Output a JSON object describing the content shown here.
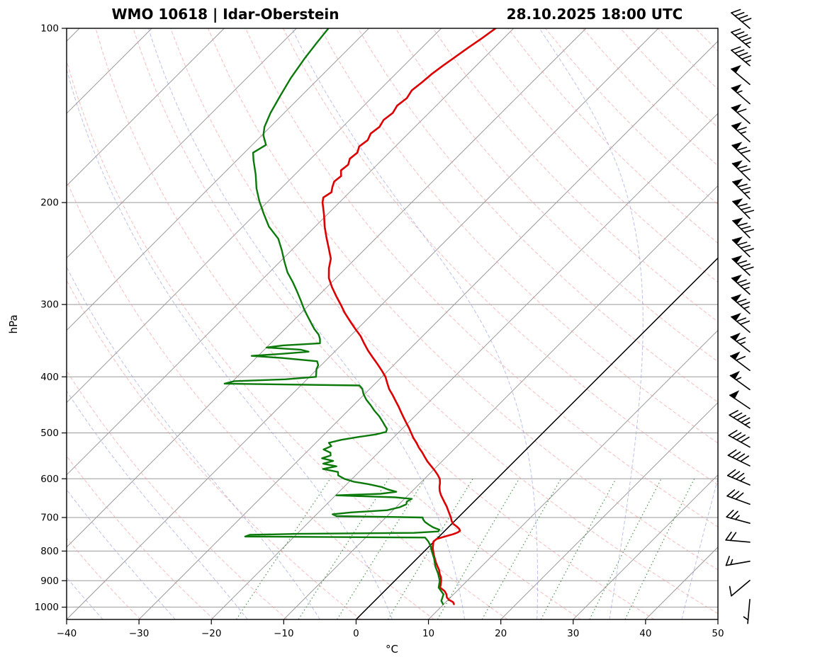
{
  "header": {
    "station_title": "WMO 10618 | Idar-Oberstein",
    "datetime_title": "28.10.2025 18:00 UTC"
  },
  "axes": {
    "pressure_label": "hPa",
    "temperature_label": "°C",
    "pressure_ticks": [
      100,
      200,
      300,
      400,
      500,
      600,
      700,
      800,
      900,
      1000
    ],
    "temperature_ticks": [
      -40,
      -30,
      -20,
      -10,
      0,
      10,
      20,
      30,
      40,
      50
    ],
    "pressure_top": 100,
    "pressure_bottom": 1050,
    "temp_min": -40,
    "temp_max": 50
  },
  "colors": {
    "temperature": "#dd0000",
    "dewpoint": "#0b7a0b",
    "dry_adiabat": "#ef9a9a",
    "moist_adiabat": "#959fdc",
    "mixing_ratio": "#2e7d32",
    "isoline": "#9a9a9a",
    "zero_isotherm": "#000000",
    "frame": "#000000",
    "wind_barb": "#000000"
  },
  "chart_data": {
    "type": "skewt",
    "title": "WMO 10618 | Idar-Oberstein",
    "subtitle": "28.10.2025 18:00 UTC",
    "xlabel": "°C",
    "ylabel": "hPa",
    "x_range_c": [
      -40,
      50
    ],
    "p_range_hpa": [
      100,
      1050
    ],
    "series": [
      {
        "name": "temperature",
        "unit": "°C",
        "color_key": "temperature",
        "points": [
          [
            988,
            11.4
          ],
          [
            980,
            11.0
          ],
          [
            972,
            10.2
          ],
          [
            962,
            9.5
          ],
          [
            950,
            9.0
          ],
          [
            938,
            8.3
          ],
          [
            925,
            7.2
          ],
          [
            912,
            6.8
          ],
          [
            900,
            6.4
          ],
          [
            888,
            5.9
          ],
          [
            875,
            5.2
          ],
          [
            862,
            4.6
          ],
          [
            850,
            3.9
          ],
          [
            838,
            3.2
          ],
          [
            825,
            2.5
          ],
          [
            812,
            1.8
          ],
          [
            800,
            1.2
          ],
          [
            790,
            0.7
          ],
          [
            780,
            0.3
          ],
          [
            770,
            -0.1
          ],
          [
            762,
            0.0
          ],
          [
            755,
            0.8
          ],
          [
            748,
            1.6
          ],
          [
            743,
            2.0
          ],
          [
            738,
            2.1
          ],
          [
            732,
            1.7
          ],
          [
            725,
            1.0
          ],
          [
            718,
            0.2
          ],
          [
            710,
            -0.4
          ],
          [
            700,
            -1.0
          ],
          [
            690,
            -1.7
          ],
          [
            680,
            -2.4
          ],
          [
            670,
            -3.1
          ],
          [
            660,
            -3.9
          ],
          [
            650,
            -4.7
          ],
          [
            640,
            -5.5
          ],
          [
            630,
            -6.2
          ],
          [
            620,
            -6.8
          ],
          [
            610,
            -7.3
          ],
          [
            600,
            -7.9
          ],
          [
            590,
            -8.8
          ],
          [
            580,
            -9.8
          ],
          [
            570,
            -10.9
          ],
          [
            560,
            -12.0
          ],
          [
            550,
            -13.0
          ],
          [
            540,
            -14.0
          ],
          [
            530,
            -15.1
          ],
          [
            520,
            -16.1
          ],
          [
            510,
            -17.2
          ],
          [
            500,
            -18.2
          ],
          [
            490,
            -19.2
          ],
          [
            480,
            -20.3
          ],
          [
            470,
            -21.4
          ],
          [
            460,
            -22.5
          ],
          [
            450,
            -23.6
          ],
          [
            440,
            -24.8
          ],
          [
            430,
            -26.0
          ],
          [
            420,
            -27.3
          ],
          [
            410,
            -28.4
          ],
          [
            400,
            -29.5
          ],
          [
            390,
            -30.9
          ],
          [
            380,
            -32.4
          ],
          [
            370,
            -34.0
          ],
          [
            360,
            -35.6
          ],
          [
            350,
            -37.1
          ],
          [
            340,
            -38.6
          ],
          [
            330,
            -40.4
          ],
          [
            320,
            -42.2
          ],
          [
            310,
            -44.0
          ],
          [
            300,
            -45.7
          ],
          [
            290,
            -47.5
          ],
          [
            280,
            -49.3
          ],
          [
            270,
            -51.0
          ],
          [
            260,
            -52.3
          ],
          [
            250,
            -53.4
          ],
          [
            240,
            -55.1
          ],
          [
            230,
            -56.9
          ],
          [
            220,
            -58.7
          ],
          [
            210,
            -60.4
          ],
          [
            200,
            -62.3
          ],
          [
            196,
            -62.9
          ],
          [
            192,
            -62.5
          ],
          [
            188,
            -63.1
          ],
          [
            184,
            -63.6
          ],
          [
            180,
            -63.4
          ],
          [
            176,
            -64.2
          ],
          [
            172,
            -64.0
          ],
          [
            168,
            -64.6
          ],
          [
            164,
            -64.4
          ],
          [
            160,
            -65.0
          ],
          [
            156,
            -64.7
          ],
          [
            152,
            -65.2
          ],
          [
            148,
            -64.9
          ],
          [
            144,
            -65.3
          ],
          [
            140,
            -65.0
          ],
          [
            136,
            -65.4
          ],
          [
            132,
            -65.1
          ],
          [
            128,
            -65.5
          ],
          [
            124,
            -65.2
          ],
          [
            120,
            -65.0
          ],
          [
            116,
            -64.6
          ],
          [
            112,
            -64.1
          ],
          [
            108,
            -63.6
          ],
          [
            104,
            -63.0
          ],
          [
            100,
            -62.5
          ]
        ]
      },
      {
        "name": "dewpoint",
        "unit": "°C",
        "color_key": "dewpoint",
        "points": [
          [
            988,
            9.9
          ],
          [
            975,
            9.2
          ],
          [
            950,
            8.6
          ],
          [
            925,
            7.0
          ],
          [
            900,
            6.2
          ],
          [
            875,
            5.0
          ],
          [
            850,
            3.6
          ],
          [
            825,
            2.4
          ],
          [
            800,
            1.0
          ],
          [
            785,
            0.2
          ],
          [
            770,
            -0.8
          ],
          [
            758,
            -1.8
          ],
          [
            755,
            -26.8
          ],
          [
            750,
            -26.4
          ],
          [
            747,
            -20.0
          ],
          [
            744,
            -4.0
          ],
          [
            740,
            -0.8
          ],
          [
            735,
            -0.9
          ],
          [
            728,
            -2.1
          ],
          [
            720,
            -3.1
          ],
          [
            712,
            -4.0
          ],
          [
            705,
            -4.6
          ],
          [
            700,
            -4.9
          ],
          [
            696,
            -17.0
          ],
          [
            691,
            -17.8
          ],
          [
            686,
            -15.5
          ],
          [
            680,
            -10.8
          ],
          [
            672,
            -9.5
          ],
          [
            664,
            -9.0
          ],
          [
            657,
            -9.3
          ],
          [
            650,
            -9.0
          ],
          [
            646,
            -11.5
          ],
          [
            641,
            -19.9
          ],
          [
            637,
            -14.0
          ],
          [
            632,
            -12.1
          ],
          [
            626,
            -13.6
          ],
          [
            620,
            -14.8
          ],
          [
            613,
            -17.0
          ],
          [
            607,
            -19.4
          ],
          [
            600,
            -21.1
          ],
          [
            592,
            -22.4
          ],
          [
            584,
            -22.9
          ],
          [
            577,
            -25.4
          ],
          [
            571,
            -23.9
          ],
          [
            565,
            -26.1
          ],
          [
            559,
            -25.1
          ],
          [
            553,
            -27.0
          ],
          [
            547,
            -26.2
          ],
          [
            541,
            -26.6
          ],
          [
            534,
            -28.0
          ],
          [
            527,
            -27.4
          ],
          [
            520,
            -28.2
          ],
          [
            514,
            -26.9
          ],
          [
            508,
            -24.9
          ],
          [
            503,
            -22.9
          ],
          [
            498,
            -21.8
          ],
          [
            492,
            -22.1
          ],
          [
            486,
            -22.8
          ],
          [
            478,
            -23.7
          ],
          [
            468,
            -24.9
          ],
          [
            458,
            -26.3
          ],
          [
            448,
            -27.6
          ],
          [
            438,
            -29.0
          ],
          [
            428,
            -30.2
          ],
          [
            420,
            -31.0
          ],
          [
            414,
            -31.9
          ],
          [
            411,
            -50.8
          ],
          [
            407,
            -49.8
          ],
          [
            404,
            -43.0
          ],
          [
            400,
            -39.1
          ],
          [
            394,
            -39.6
          ],
          [
            388,
            -40.1
          ],
          [
            382,
            -40.4
          ],
          [
            376,
            -41.1
          ],
          [
            371,
            -46.5
          ],
          [
            368,
            -50.9
          ],
          [
            365,
            -47.0
          ],
          [
            362,
            -43.6
          ],
          [
            359,
            -45.0
          ],
          [
            356,
            -50.0
          ],
          [
            353,
            -48.0
          ],
          [
            350,
            -43.2
          ],
          [
            344,
            -43.8
          ],
          [
            338,
            -44.6
          ],
          [
            331,
            -45.9
          ],
          [
            323,
            -47.2
          ],
          [
            314,
            -48.7
          ],
          [
            305,
            -50.2
          ],
          [
            295,
            -51.8
          ],
          [
            285,
            -53.5
          ],
          [
            275,
            -55.3
          ],
          [
            264,
            -57.5
          ],
          [
            253,
            -59.4
          ],
          [
            242,
            -61.3
          ],
          [
            231,
            -63.4
          ],
          [
            220,
            -66.4
          ],
          [
            209,
            -68.9
          ],
          [
            199,
            -71.2
          ],
          [
            189,
            -73.4
          ],
          [
            179,
            -75.4
          ],
          [
            169,
            -77.7
          ],
          [
            164,
            -78.8
          ],
          [
            159,
            -78.1
          ],
          [
            153,
            -79.8
          ],
          [
            148,
            -80.8
          ],
          [
            140,
            -81.9
          ],
          [
            131,
            -82.9
          ],
          [
            122,
            -83.9
          ],
          [
            113,
            -84.7
          ],
          [
            106,
            -85.2
          ],
          [
            100,
            -85.6
          ]
        ]
      }
    ],
    "wind_barbs": {
      "format": [
        "pressure_hpa",
        "direction_deg_from",
        "speed_kt"
      ],
      "levels": [
        [
          970,
          185,
          4
        ],
        [
          899,
          230,
          10
        ],
        [
          833,
          260,
          15
        ],
        [
          772,
          275,
          20
        ],
        [
          716,
          285,
          25
        ],
        [
          664,
          290,
          30
        ],
        [
          615,
          293,
          34
        ],
        [
          570,
          296,
          38
        ],
        [
          529,
          299,
          42
        ],
        [
          490,
          302,
          46
        ],
        [
          454,
          304,
          50
        ],
        [
          421,
          306,
          55
        ],
        [
          390,
          307,
          60
        ],
        [
          362,
          308,
          65
        ],
        [
          335,
          310,
          70
        ],
        [
          311,
          311,
          74
        ],
        [
          288,
          312,
          77
        ],
        [
          267,
          313,
          80
        ],
        [
          248,
          314,
          82
        ],
        [
          230,
          315,
          81
        ],
        [
          213,
          315,
          79
        ],
        [
          197,
          315,
          76
        ],
        [
          183,
          314,
          72
        ],
        [
          170,
          313,
          68
        ],
        [
          157,
          312,
          63
        ],
        [
          146,
          311,
          58
        ],
        [
          135,
          311,
          54
        ],
        [
          125,
          310,
          50
        ],
        [
          116,
          310,
          47
        ],
        [
          108,
          310,
          44
        ],
        [
          100,
          310,
          42
        ]
      ]
    },
    "background": {
      "isobars_hpa": [
        100,
        200,
        300,
        400,
        500,
        600,
        700,
        800,
        900,
        1000
      ],
      "isotherm_min_c": -120,
      "isotherm_max_c": 40,
      "isotherm_step_c": 10,
      "highlight_isotherm_c": 0,
      "dry_adiabats_theta_k": [
        240,
        250,
        260,
        270,
        280,
        290,
        300,
        310,
        320,
        330,
        340,
        350,
        360,
        370,
        380,
        390,
        400,
        410,
        420,
        430,
        440,
        450,
        460,
        470,
        480,
        490,
        500
      ],
      "moist_adiabats_start_c": [
        -35,
        -25,
        -15,
        -5,
        5,
        15,
        25,
        35,
        45
      ],
      "mixing_ratio_g_kg": [
        1,
        2,
        3,
        5,
        8,
        12,
        20,
        30,
        40
      ],
      "mixing_ratio_p_range": [
        1050,
        600
      ],
      "grid": true,
      "legend": "none"
    }
  }
}
